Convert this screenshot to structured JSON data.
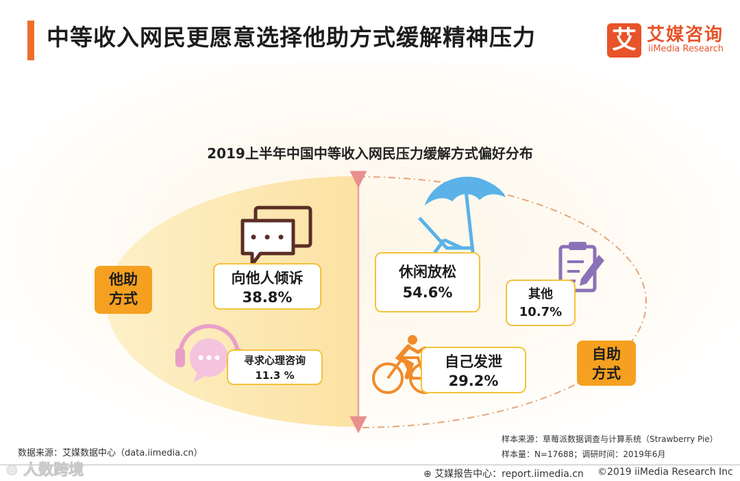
{
  "header": {
    "title": "中等收入网民更愿意选择他助方式缓解精神压力",
    "logo_mark": "艾",
    "logo_cn": "艾媒咨询",
    "logo_en": "iiMedia Research"
  },
  "chart_data": {
    "type": "bubble-diagram",
    "title": "2019上半年中国中等收入网民压力缓解方式偏好分布",
    "unit": "%",
    "groups": [
      {
        "name": "他助方式",
        "items": [
          {
            "label": "向他人倾诉",
            "value": 38.8,
            "display": "38.8%",
            "icon": "chat-bubbles-icon"
          },
          {
            "label": "寻求心理咨询",
            "value": 11.3,
            "display": "11.3 %",
            "icon": "headset-chat-icon"
          }
        ]
      },
      {
        "name": "自助方式",
        "items": [
          {
            "label": "休闲放松",
            "value": 54.6,
            "display": "54.6%",
            "icon": "beach-umbrella-icon"
          },
          {
            "label": "其他",
            "value": 10.7,
            "display": "10.7%",
            "icon": "clipboard-pen-icon"
          },
          {
            "label": "自己发泄",
            "value": 29.2,
            "display": "29.2%",
            "icon": "cyclist-icon"
          }
        ]
      }
    ]
  },
  "labels": {
    "left_group": "他助\n方式",
    "right_group": "自助\n方式"
  },
  "footer": {
    "data_source": "数据来源：艾媒数据中心（data.iimedia.cn）",
    "sample_source": "样本来源：草莓派数据调查与计算系统（Strawberry Pie）",
    "sample_size": "样本量：N=17688；调研时间：2019年6月",
    "report_center": "艾媒报告中心：report.iimedia.cn",
    "copyright": "©2019  iiMedia Research  Inc",
    "watermark": "人数跨境"
  },
  "colors": {
    "accent_orange": "#ef6c2c",
    "tag_orange": "#f5a020",
    "box_border": "#f3c23a",
    "ellipse_fill": "#fcd98a",
    "dash_line": "#e5a47a",
    "divider": "#e9a0a0",
    "icon_dark": "#5a2d24",
    "icon_pink": "#e8a0c8",
    "icon_blue": "#5ab2e8",
    "icon_purple": "#8b72b8",
    "icon_orange": "#f08b2a"
  }
}
